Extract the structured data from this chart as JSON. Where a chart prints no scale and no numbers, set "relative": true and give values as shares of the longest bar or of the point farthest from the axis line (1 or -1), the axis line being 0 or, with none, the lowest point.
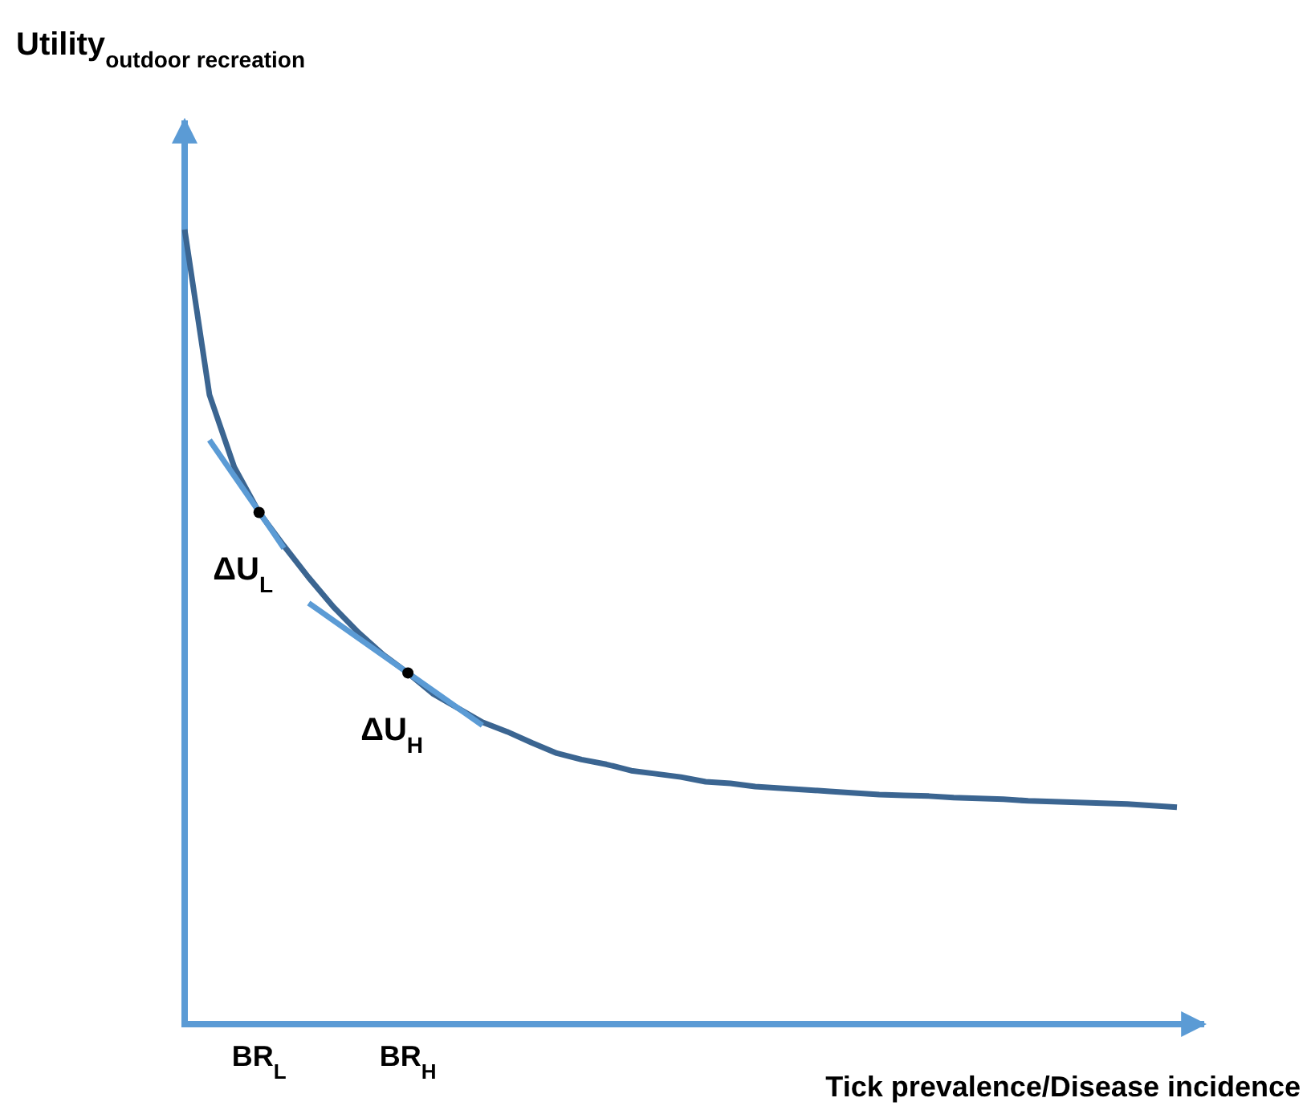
{
  "chart_data": {
    "type": "line",
    "relative": true,
    "ylabel": "Utility$_{outdoor recreation}$",
    "xlabel": "Tick prevalence/Disease incidence",
    "categories": [
      null,
      null,
      null,
      "BR$_{L}$",
      null,
      null,
      null,
      null,
      null,
      "BR$_{H}$",
      null,
      null,
      null,
      null,
      null,
      null,
      null,
      null,
      null,
      null,
      null,
      null,
      null,
      null,
      null,
      null,
      null,
      null,
      null,
      null,
      null,
      null,
      null,
      null,
      null,
      null,
      null,
      null,
      null,
      null,
      null
    ],
    "series": [
      {
        "color": "#3b6591",
        "values": [
          1.0,
          0.792,
          0.701,
          0.644,
          0.602,
          0.562,
          0.525,
          0.493,
          0.465,
          0.442,
          0.416,
          0.398,
          0.38,
          0.368,
          0.354,
          0.341,
          0.333,
          0.327,
          0.319,
          0.315,
          0.311,
          0.305,
          0.303,
          0.299,
          0.297,
          0.295,
          0.293,
          0.291,
          0.289,
          0.288,
          0.287,
          0.285,
          0.284,
          0.283,
          0.281,
          0.28,
          0.279,
          0.278,
          0.277,
          0.275,
          0.273
        ]
      },
      {
        "color": "#5b9bd5",
        "values": [
          null,
          0.735,
          0.69,
          0.645,
          0.599,
          null,
          null,
          null,
          null,
          null,
          null,
          null,
          null,
          null,
          null,
          null,
          null,
          null,
          null,
          null,
          null,
          null,
          null,
          null,
          null,
          null,
          null,
          null,
          null,
          null,
          null,
          null,
          null,
          null,
          null,
          null,
          null,
          null,
          null,
          null,
          null
        ]
      },
      {
        "color": "#5b9bd5",
        "values": [
          null,
          null,
          null,
          null,
          null,
          0.53,
          0.508,
          0.486,
          0.464,
          0.442,
          0.42,
          0.398,
          0.376,
          null,
          null,
          null,
          null,
          null,
          null,
          null,
          null,
          null,
          null,
          null,
          null,
          null,
          null,
          null,
          null,
          null,
          null,
          null,
          null,
          null,
          null,
          null,
          null,
          null,
          null,
          null,
          null
        ]
      },
      {
        "type": "scatter",
        "color": "#000000",
        "values": [
          null,
          null,
          null,
          0.644,
          null,
          null,
          null,
          null,
          null,
          0.442,
          null,
          null,
          null,
          null,
          null,
          null,
          null,
          null,
          null,
          null,
          null,
          null,
          null,
          null,
          null,
          null,
          null,
          null,
          null,
          null,
          null,
          null,
          null,
          null,
          null,
          null,
          null,
          null,
          null,
          null,
          null
        ]
      }
    ],
    "annotations": [
      "ΔU$_{L}$",
      "ΔU$_{H}$"
    ]
  }
}
